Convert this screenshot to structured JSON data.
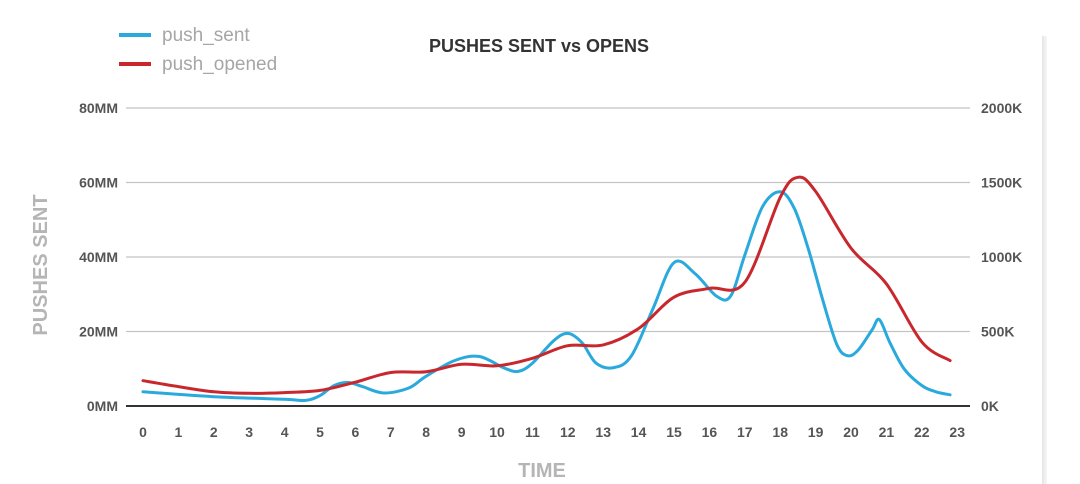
{
  "chart_data": {
    "type": "line",
    "title": "PUSHES SENT vs OPENS",
    "xlabel": "TIME",
    "ylabel": "PUSHES SENT",
    "y_right_label": "",
    "categories": [
      "0",
      "1",
      "2",
      "3",
      "4",
      "5",
      "6",
      "7",
      "8",
      "9",
      "10",
      "11",
      "12",
      "13",
      "14",
      "15",
      "16",
      "17",
      "18",
      "19",
      "20",
      "21",
      "22",
      "23"
    ],
    "ylim": [
      0,
      80
    ],
    "y_ticks": [
      "0MM",
      "20MM",
      "40MM",
      "60MM",
      "80MM"
    ],
    "y_ticks_values": [
      0,
      20,
      40,
      60,
      80
    ],
    "ylim_right": [
      0,
      2000
    ],
    "y_ticks_right": [
      "0K",
      "500K",
      "1000K",
      "1500K",
      "2000K"
    ],
    "y_ticks_right_values": [
      0,
      500,
      1000,
      1500,
      2000
    ],
    "legend_position": "top-left",
    "grid": true,
    "series": [
      {
        "name": "push_sent",
        "axis": "left",
        "color": "#2aa9dc",
        "x": [
          0,
          2,
          4,
          4.6,
          5,
          5.4,
          5.8,
          6.2,
          6.8,
          7.5,
          8,
          8.8,
          9.5,
          10.2,
          10.6,
          11,
          11.6,
          12,
          12.4,
          12.8,
          13.3,
          13.8,
          14.4,
          15,
          15.6,
          16.2,
          16.6,
          17,
          17.5,
          18,
          18.4,
          18.8,
          19.2,
          19.6,
          19.9,
          20.2,
          20.6,
          20.8,
          21.1,
          21.5,
          22,
          22.4,
          22.8
        ],
        "values": [
          3.8,
          2.5,
          1.8,
          1.5,
          2.8,
          5.5,
          6.3,
          5.2,
          3.5,
          4.8,
          8,
          12.2,
          13.3,
          10.2,
          9.3,
          11.5,
          17.5,
          19.5,
          17,
          11.5,
          10.3,
          13.5,
          26,
          38.5,
          35.5,
          29.5,
          29.5,
          40.5,
          53.5,
          57.5,
          53,
          42,
          28.5,
          16.5,
          13.5,
          15,
          20.5,
          23.2,
          17,
          10,
          5.5,
          3.8,
          3
        ]
      },
      {
        "name": "push_opened",
        "axis": "right",
        "color": "#c8282d",
        "x": [
          0,
          1,
          2,
          3,
          4,
          5,
          6,
          7,
          8,
          9,
          10,
          11,
          12,
          13,
          14,
          15,
          16,
          17,
          18,
          18.5,
          19,
          20,
          21,
          22,
          22.8
        ],
        "values": [
          170,
          130,
          95,
          85,
          90,
          105,
          160,
          225,
          230,
          280,
          270,
          320,
          405,
          410,
          520,
          730,
          790,
          830,
          1400,
          1535,
          1440,
          1060,
          820,
          430,
          305
        ]
      }
    ]
  }
}
